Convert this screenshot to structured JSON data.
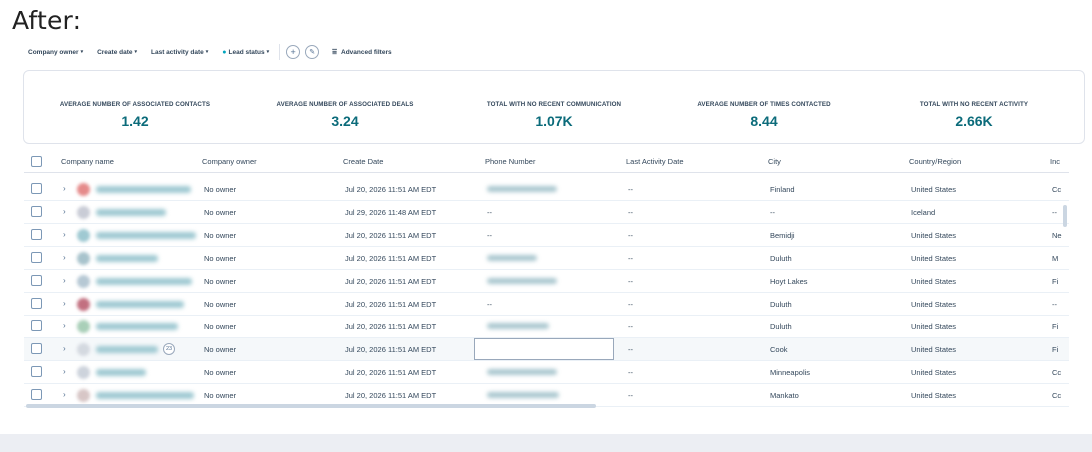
{
  "heading": "After:",
  "filters": [
    {
      "label": "Company owner",
      "dot": false
    },
    {
      "label": "Create date",
      "dot": false
    },
    {
      "label": "Last activity date",
      "dot": false
    },
    {
      "label": "Lead status",
      "dot": true
    }
  ],
  "advanced_filters_label": "Advanced filters",
  "add_icon_glyph": "+",
  "edit_icon_glyph": "✎",
  "filter_icon_glyph": "⩸",
  "caret_glyph": "▾",
  "stats": [
    {
      "label": "AVERAGE NUMBER OF ASSOCIATED CONTACTS",
      "value": "1.42"
    },
    {
      "label": "AVERAGE NUMBER OF ASSOCIATED DEALS",
      "value": "3.24"
    },
    {
      "label": "TOTAL WITH NO RECENT COMMUNICATION",
      "value": "1.07K"
    },
    {
      "label": "AVERAGE NUMBER OF TIMES CONTACTED",
      "value": "8.44"
    },
    {
      "label": "TOTAL WITH NO RECENT ACTIVITY",
      "value": "2.66K"
    }
  ],
  "columns": [
    "Company name",
    "Company owner",
    "Create Date",
    "Phone Number",
    "Last Activity Date",
    "City",
    "Country/Region",
    "Inc"
  ],
  "rows": [
    {
      "owner": "No owner",
      "created": "Jul 20, 2026 11:51 AM EDT",
      "phone": "",
      "last_activity": "--",
      "city": "Finland",
      "country": "United States",
      "extra": "Cc"
    },
    {
      "owner": "No owner",
      "created": "Jul 29, 2026 11:48 AM EDT",
      "phone": "--",
      "last_activity": "--",
      "city": "--",
      "country": "Iceland",
      "extra": "--"
    },
    {
      "owner": "No owner",
      "created": "Jul 20, 2026 11:51 AM EDT",
      "phone": "--",
      "last_activity": "--",
      "city": "Bemidji",
      "country": "United States",
      "extra": "Ne"
    },
    {
      "owner": "No owner",
      "created": "Jul 20, 2026 11:51 AM EDT",
      "phone": "",
      "last_activity": "--",
      "city": "Duluth",
      "country": "United States",
      "extra": "M"
    },
    {
      "owner": "No owner",
      "created": "Jul 20, 2026 11:51 AM EDT",
      "phone": "",
      "last_activity": "--",
      "city": "Hoyt Lakes",
      "country": "United States",
      "extra": "Fi"
    },
    {
      "owner": "No owner",
      "created": "Jul 20, 2026 11:51 AM EDT",
      "phone": "--",
      "last_activity": "--",
      "city": "Duluth",
      "country": "United States",
      "extra": "--"
    },
    {
      "owner": "No owner",
      "created": "Jul 20, 2026 11:51 AM EDT",
      "phone": "",
      "last_activity": "--",
      "city": "Duluth",
      "country": "United States",
      "extra": "Fi"
    },
    {
      "owner": "No owner",
      "created": "Jul 20, 2026 11:51 AM EDT",
      "phone": "",
      "last_activity": "--",
      "city": "Cook",
      "country": "United States",
      "extra": "Fi",
      "badge": "23"
    },
    {
      "owner": "No owner",
      "created": "Jul 20, 2026 11:51 AM EDT",
      "phone": "",
      "last_activity": "--",
      "city": "Minneapolis",
      "country": "United States",
      "extra": "Cc"
    },
    {
      "owner": "No owner",
      "created": "Jul 20, 2026 11:51 AM EDT",
      "phone": "",
      "last_activity": "--",
      "city": "Mankato",
      "country": "United States",
      "extra": "Cc"
    }
  ]
}
